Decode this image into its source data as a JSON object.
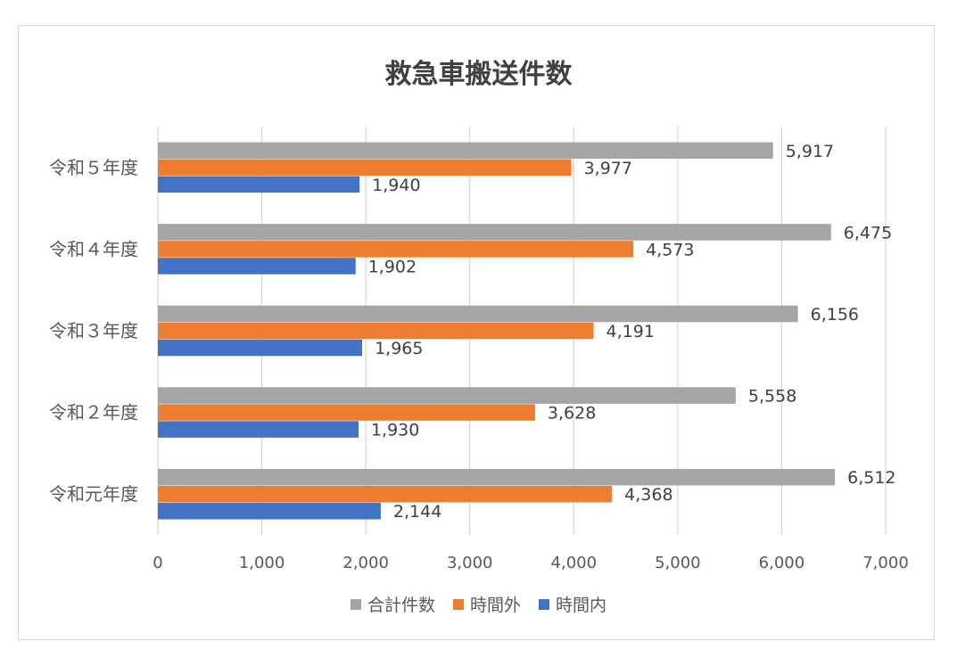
{
  "chart_data": {
    "type": "bar",
    "orientation": "horizontal",
    "title": "救急車搬送件数",
    "categories": [
      "令和５年度",
      "令和４年度",
      "令和３年度",
      "令和２年度",
      "令和元年度"
    ],
    "series": [
      {
        "name": "合計件数",
        "color": "#a5a5a5",
        "values": [
          5917,
          6475,
          6156,
          5558,
          6512
        ]
      },
      {
        "name": "時間外",
        "color": "#ed7d31",
        "values": [
          3977,
          4573,
          4191,
          3628,
          4368
        ]
      },
      {
        "name": "時間内",
        "color": "#4472c4",
        "values": [
          1940,
          1902,
          1965,
          1930,
          2144
        ]
      }
    ],
    "value_labels": [
      [
        "5,917",
        "6,475",
        "6,156",
        "5,558",
        "6,512"
      ],
      [
        "3,977",
        "4,573",
        "4,191",
        "3,628",
        "4,368"
      ],
      [
        "1,940",
        "1,902",
        "1,965",
        "1,930",
        "2,144"
      ]
    ],
    "xlim": [
      0,
      7000
    ],
    "xticks": [
      0,
      1000,
      2000,
      3000,
      4000,
      5000,
      6000,
      7000
    ],
    "xtick_labels": [
      "0",
      "1,000",
      "2,000",
      "3,000",
      "4,000",
      "5,000",
      "6,000",
      "7,000"
    ],
    "grid": "vertical",
    "legend_position": "bottom"
  }
}
